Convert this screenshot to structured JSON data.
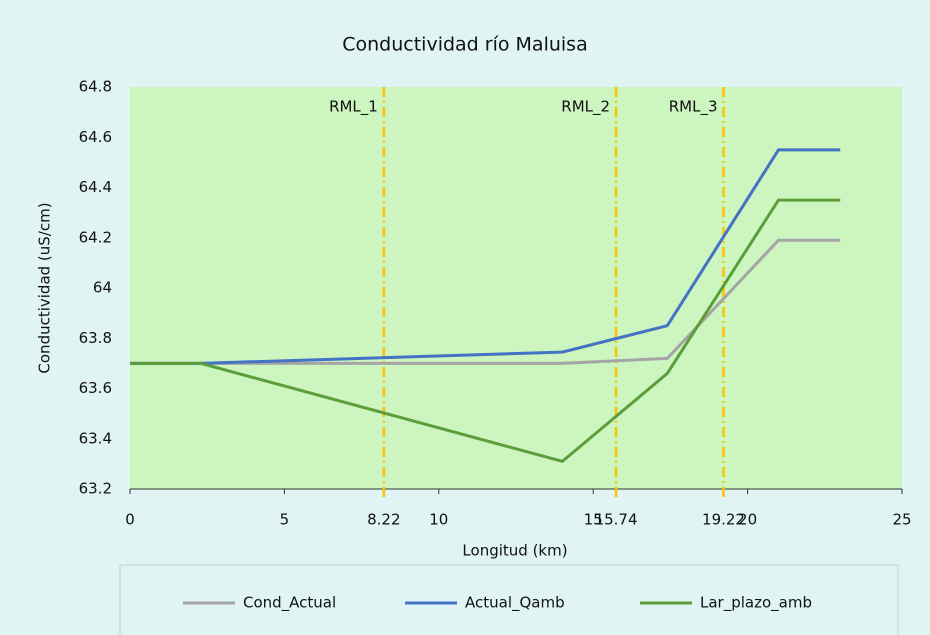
{
  "chart_data": {
    "type": "line",
    "title": "Conductividad río Maluisa",
    "x_label": "Longitud (km)",
    "y_label": "Conductividad (uS/cm)",
    "x": [
      0,
      2.3,
      14,
      17.4,
      21,
      23
    ],
    "series": [
      {
        "name": "Cond_Actual",
        "color": "#a5a5a5",
        "values": [
          63.7,
          63.7,
          63.7,
          63.72,
          64.19,
          64.19
        ]
      },
      {
        "name": "Actual_Qamb",
        "color": "#4472c4",
        "values": [
          63.7,
          63.7,
          63.745,
          63.85,
          64.55,
          64.55
        ]
      },
      {
        "name": "Lar_plazo_amb",
        "color": "#5b9e3a",
        "values": [
          63.7,
          63.7,
          63.31,
          63.66,
          64.35,
          64.35
        ]
      }
    ],
    "reference_lines": [
      {
        "x": 8.22,
        "label": "RML_1",
        "color": "#ffc000"
      },
      {
        "x": 15.74,
        "label": "RML_2",
        "color": "#ffc000"
      },
      {
        "x": 19.22,
        "label": "RML_3",
        "color": "#ffc000"
      }
    ],
    "xlim": [
      0,
      25
    ],
    "xticks": [
      0,
      5,
      10,
      15,
      20,
      25
    ],
    "ylim": [
      63.2,
      64.8
    ],
    "yticks": [
      63.2,
      63.4,
      63.6,
      63.8,
      64,
      64.2,
      64.4,
      64.6,
      64.8
    ],
    "plot_background": "#ccf5c0",
    "legend": "bottom"
  }
}
